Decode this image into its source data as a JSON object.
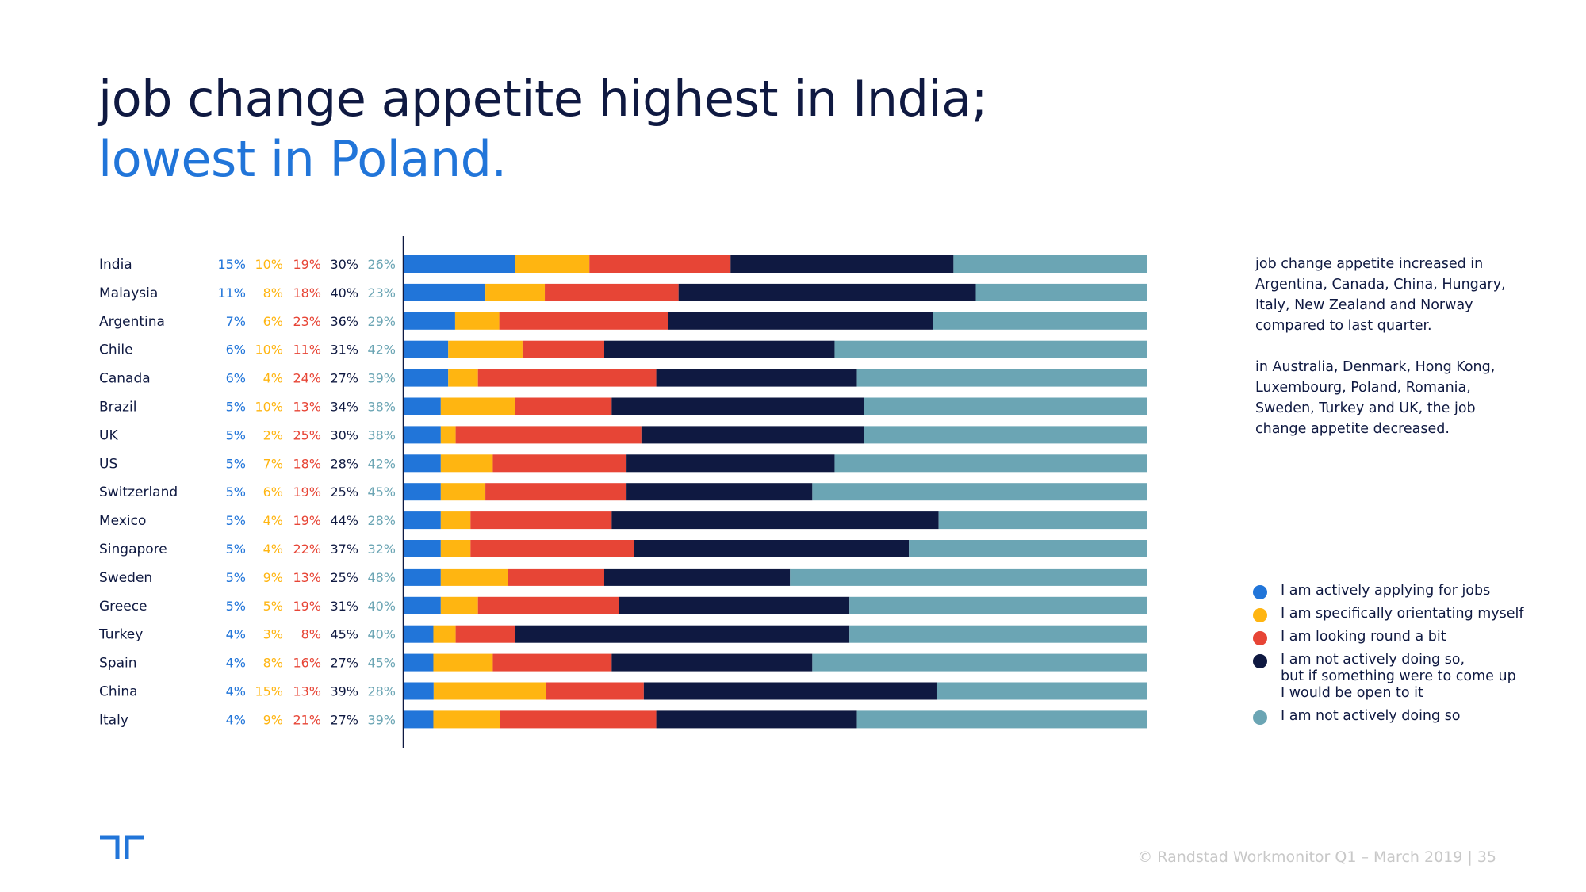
{
  "title": {
    "line1": "job change appetite highest in India;",
    "line2": "lowest in Poland."
  },
  "colors": {
    "title_dark": "#0f1941",
    "title_blue": "#2175d9",
    "series": [
      "#2175d9",
      "#ffb511",
      "#e74536",
      "#0f1941",
      "#6ba5b4"
    ]
  },
  "chart_data": {
    "type": "bar",
    "orientation": "horizontal",
    "stacked": true,
    "normalized": true,
    "categories": [
      "India",
      "Malaysia",
      "Argentina",
      "Chile",
      "Canada",
      "Brazil",
      "UK",
      "US",
      "Switzerland",
      "Mexico",
      "Singapore",
      "Sweden",
      "Greece",
      "Turkey",
      "Spain",
      "China",
      "Italy"
    ],
    "series": [
      {
        "name": "I am actively applying for jobs",
        "color": "#2175d9",
        "values": [
          15,
          11,
          7,
          6,
          6,
          5,
          5,
          5,
          5,
          5,
          5,
          5,
          5,
          4,
          4,
          4,
          4
        ]
      },
      {
        "name": "I am specifically orientating myself",
        "color": "#ffb511",
        "values": [
          10,
          8,
          6,
          10,
          4,
          10,
          2,
          7,
          6,
          4,
          4,
          9,
          5,
          3,
          8,
          15,
          9
        ]
      },
      {
        "name": "I am looking round a bit",
        "color": "#e74536",
        "values": [
          19,
          18,
          23,
          11,
          24,
          13,
          25,
          18,
          19,
          19,
          22,
          13,
          19,
          8,
          16,
          13,
          21
        ]
      },
      {
        "name": "I am not actively doing so,\nbut if something were to come up\nI would be open to it",
        "color": "#0f1941",
        "values": [
          30,
          40,
          36,
          31,
          27,
          34,
          30,
          28,
          25,
          44,
          37,
          25,
          31,
          45,
          27,
          39,
          27
        ]
      },
      {
        "name": "I am not actively doing so",
        "color": "#6ba5b4",
        "values": [
          26,
          23,
          29,
          42,
          39,
          38,
          38,
          42,
          45,
          28,
          32,
          48,
          40,
          40,
          45,
          28,
          39
        ]
      }
    ],
    "value_format": "{v}%"
  },
  "side_note": {
    "paragraph1": "job change appetite increased in Argentina, Canada, China, Hungary, Italy, New Zealand and Norway compared to last quarter.",
    "paragraph2": "in Australia, Denmark, Hong Kong, Luxembourg, Poland, Romania, Sweden, Turkey and UK, the job change appetite decreased."
  },
  "legend": {
    "items": [
      {
        "label": "I am actively applying for jobs",
        "color": "#2175d9"
      },
      {
        "label": "I am specifically orientating myself",
        "color": "#ffb511"
      },
      {
        "label": "I am looking round a bit",
        "color": "#e74536"
      },
      {
        "label": "I am not actively doing so,\nbut if something were to come up\nI would be open to it",
        "color": "#0f1941"
      },
      {
        "label": "I am not actively doing so",
        "color": "#6ba5b4"
      }
    ]
  },
  "footer": {
    "text": "© Randstad Workmonitor Q1 – March 2019  |  35"
  }
}
